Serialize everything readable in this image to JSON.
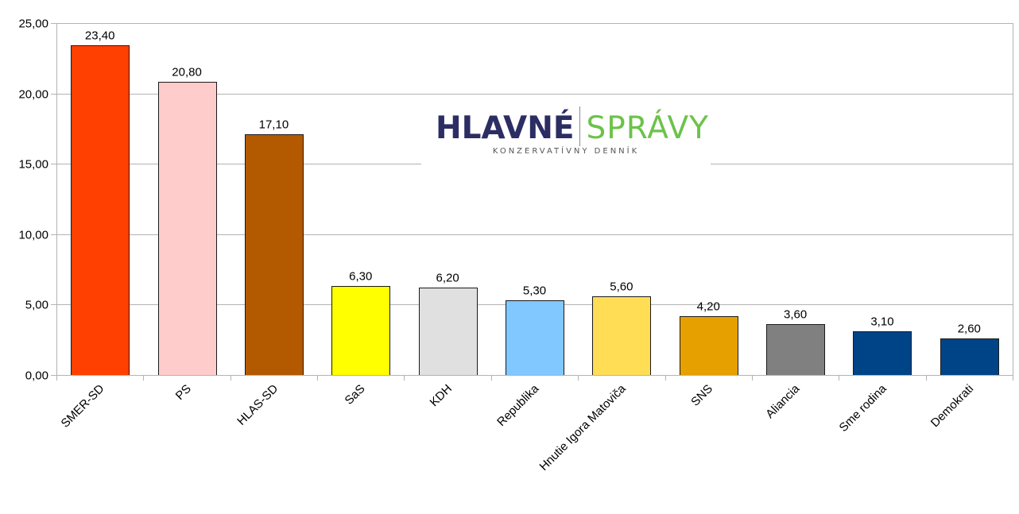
{
  "chart_data": {
    "type": "bar",
    "categories": [
      "SMER-SD",
      "PS",
      "HLAS-SD",
      "SaS",
      "KDH",
      "Republika",
      "Hnutie Igora Matoviča",
      "SNS",
      "Aliancia",
      "Sme rodina",
      "Demokrati"
    ],
    "values": [
      23.4,
      20.8,
      17.1,
      6.3,
      6.2,
      5.3,
      5.6,
      4.2,
      3.6,
      3.1,
      2.6
    ],
    "value_labels": [
      "23,40",
      "20,80",
      "17,10",
      "6,30",
      "6,20",
      "5,30",
      "5,60",
      "4,20",
      "3,60",
      "3,10",
      "2,60"
    ],
    "bar_colors": [
      "#ff4000",
      "#ffcccc",
      "#b35900",
      "#ffff00",
      "#e0e0e0",
      "#80c8ff",
      "#ffdd55",
      "#e6a000",
      "#808080",
      "#004488",
      "#004488"
    ],
    "yticks": [
      0,
      5,
      10,
      15,
      20,
      25
    ],
    "ytick_labels": [
      "0,00",
      "5,00",
      "10,00",
      "15,00",
      "20,00",
      "25,00"
    ],
    "ylim": [
      0,
      25
    ],
    "grid": true,
    "title": "",
    "xlabel": "",
    "ylabel": ""
  },
  "logo": {
    "left": "HLAVNÉ",
    "right": "SPRÁVY",
    "sub": "KONZERVATÍVNY DENNÍK"
  }
}
